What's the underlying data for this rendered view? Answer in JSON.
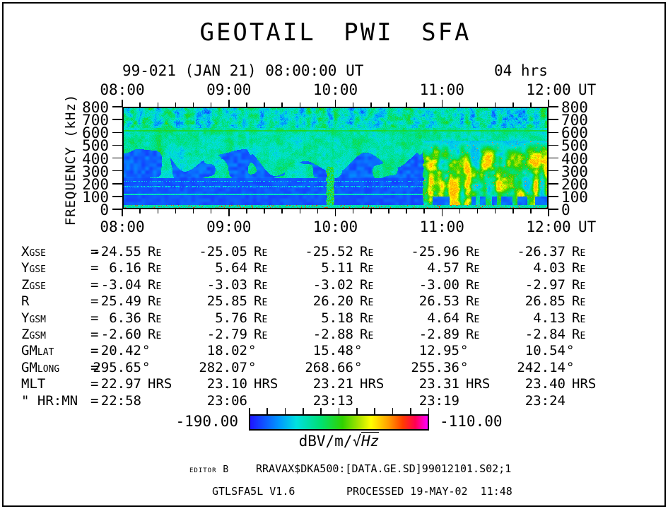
{
  "page": {
    "background": "#ffffff",
    "foreground": "#000000"
  },
  "header": {
    "title": "GEOTAIL PWI SFA",
    "date_label": "99-021 (JAN 21) 08:00:00 UT",
    "duration_label": "04 hrs"
  },
  "axes": {
    "time_tick_labels": [
      "08:00",
      "09:00",
      "10:00",
      "11:00",
      "12:00"
    ],
    "time_unit_label": "UT",
    "minor_ticks_per_hour": 6,
    "freq_tick_labels": [
      "800",
      "700",
      "600",
      "500",
      "400",
      "300",
      "200",
      "100",
      "0"
    ],
    "freq_axis_label": "FREQUENCY (kHz)"
  },
  "chart_data": {
    "type": "heatmap",
    "title": "GEOTAIL PWI SFA",
    "xlabel": "UT",
    "ylabel": "FREQUENCY (kHz)",
    "x_range_hours": [
      8,
      12
    ],
    "x_tick_labels": [
      "08:00",
      "09:00",
      "10:00",
      "11:00",
      "12:00"
    ],
    "y_range_khz": [
      0,
      800
    ],
    "y_tick_step_khz": 100,
    "z_label": "dBV/m/√Hz",
    "z_range_db": [
      -190.0,
      -110.0
    ],
    "colormap": [
      [
        0.0,
        "#1e14ff"
      ],
      [
        0.16,
        "#0096ff"
      ],
      [
        0.26,
        "#00e0e0"
      ],
      [
        0.4,
        "#00e070"
      ],
      [
        0.52,
        "#30d200"
      ],
      [
        0.62,
        "#b4e600"
      ],
      [
        0.68,
        "#ffff00"
      ],
      [
        0.78,
        "#ff9e00"
      ],
      [
        0.86,
        "#ff3c00"
      ],
      [
        0.93,
        "#ff0050"
      ],
      [
        1.0,
        "#ff00ff"
      ]
    ],
    "features": {
      "base_level": 0.27,
      "top_band_khz": 640,
      "top_band_level": 0.14,
      "top_band_lines_khz": [
        655,
        700
      ],
      "green_line_khz": 620,
      "green_line_level": 0.42,
      "low_band_khz": 235,
      "low_band_level": 0.055,
      "cyan_line_khz": 105,
      "dotted_lines_khz": [
        170,
        212
      ],
      "blob_top_khz": 470,
      "transition_hour": 2.83,
      "bright_top_khz": 540,
      "bright_level": 0.6,
      "green_streak_hour": 1.95,
      "bottom_line_khz": 18,
      "bottom_line_level": 0.33
    }
  },
  "ephemeris": {
    "equals": "=",
    "rows": [
      {
        "label": "Xgse",
        "values": [
          "-24.55",
          "-25.05",
          "-25.52",
          "-25.96",
          "-26.37"
        ],
        "unit": "Re"
      },
      {
        "label": "Ygse",
        "values": [
          "6.16",
          "5.64",
          "5.11",
          "4.57",
          "4.03"
        ],
        "unit": "Re"
      },
      {
        "label": "Zgse",
        "values": [
          "-3.04",
          "-3.03",
          "-3.02",
          "-3.00",
          "-2.97"
        ],
        "unit": "Re"
      },
      {
        "label": "R",
        "values": [
          "25.49",
          "25.85",
          "26.20",
          "26.53",
          "26.85"
        ],
        "unit": "Re"
      },
      {
        "label": "Ygsm",
        "values": [
          "6.36",
          "5.76",
          "5.18",
          "4.64",
          "4.13"
        ],
        "unit": "Re"
      },
      {
        "label": "Zgsm",
        "values": [
          "-2.60",
          "-2.79",
          "-2.88",
          "-2.89",
          "-2.84"
        ],
        "unit": "Re"
      },
      {
        "label": "GMlat",
        "values": [
          "20.42",
          "18.02",
          "15.48",
          "12.95",
          "10.54"
        ],
        "unit": "°"
      },
      {
        "label": "GMlong",
        "values": [
          "295.65",
          "282.07",
          "268.66",
          "255.36",
          "242.14"
        ],
        "unit": "°"
      },
      {
        "label": "MLT",
        "values": [
          "22.97",
          "23.10",
          "23.21",
          "23.31",
          "23.40"
        ],
        "unit": "HRS"
      },
      {
        "label": "\" HR:MN",
        "values": [
          "22:58",
          "23:06",
          "23:13",
          "23:19",
          "23:24"
        ],
        "unit": ""
      }
    ]
  },
  "colorbar": {
    "min_label": "-190.00",
    "max_label": "-110.00",
    "unit_prefix": "dBV/m/",
    "sqrt": "√",
    "unit_italic": "Hz",
    "ticks": 11
  },
  "footer": {
    "editor_label": "editor B",
    "file_path": "RRAVAX$DKA500:[DATA.GE.SD]99012101.S02;1",
    "program_version": "GTLSFA5L V1.6",
    "processed_label": "PROCESSED 19-MAY-02  11:48"
  }
}
